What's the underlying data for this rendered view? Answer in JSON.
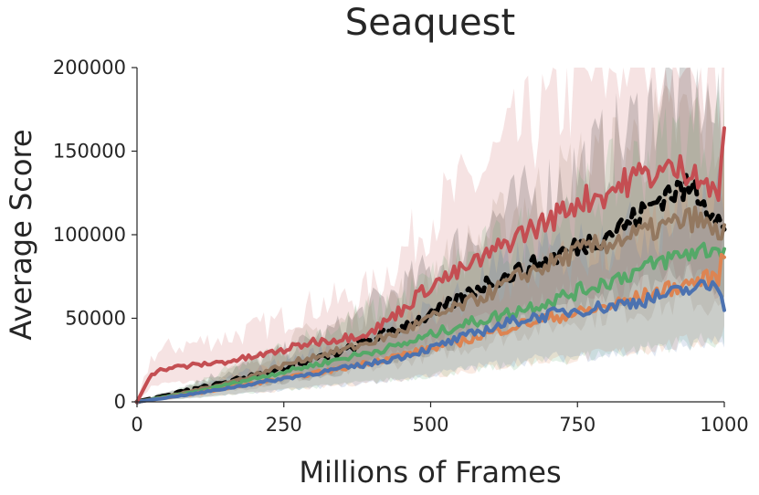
{
  "chart_data": {
    "type": "line",
    "title": "Seaquest",
    "xlabel": "Millions of Frames",
    "ylabel": "Average Score",
    "xlim": [
      0,
      1000
    ],
    "ylim": [
      0,
      200000
    ],
    "xticks": [
      "0",
      "250",
      "500",
      "750",
      "1000"
    ],
    "yticks": [
      "0",
      "50000",
      "100000",
      "150000",
      "200000"
    ],
    "grid": false,
    "legend": "none",
    "series": [
      {
        "color": "#c44e52",
        "dashed": false,
        "x": [
          0,
          25,
          50,
          100,
          150,
          200,
          250,
          300,
          350,
          400,
          450,
          500,
          550,
          600,
          650,
          700,
          750,
          800,
          850,
          900,
          950,
          990,
          1000
        ],
        "y": [
          0,
          17000,
          20000,
          22000,
          24000,
          27000,
          31000,
          36000,
          38000,
          42000,
          55000,
          70000,
          78000,
          88000,
          100000,
          108000,
          120000,
          125000,
          135000,
          138000,
          140000,
          120000,
          170000
        ],
        "band": [
          0.45,
          0.6
        ]
      },
      {
        "color": "#000000",
        "dashed": true,
        "x": [
          0,
          50,
          100,
          150,
          200,
          250,
          300,
          350,
          400,
          450,
          500,
          550,
          600,
          650,
          700,
          750,
          800,
          850,
          900,
          950,
          990,
          1000
        ],
        "y": [
          0,
          4000,
          8000,
          12000,
          16000,
          20000,
          25000,
          30000,
          38000,
          45000,
          52000,
          62000,
          72000,
          78000,
          85000,
          93000,
          100000,
          110000,
          125000,
          128000,
          110000,
          100000
        ],
        "band": [
          0.4,
          0.5
        ]
      },
      {
        "color": "#937860",
        "dashed": false,
        "x": [
          0,
          50,
          100,
          150,
          200,
          250,
          300,
          350,
          400,
          450,
          500,
          550,
          600,
          650,
          700,
          750,
          800,
          850,
          900,
          950,
          990,
          1000
        ],
        "y": [
          0,
          3000,
          7000,
          11000,
          16000,
          22000,
          27000,
          31000,
          36000,
          42000,
          50000,
          57000,
          65000,
          75000,
          82000,
          90000,
          95000,
          100000,
          105000,
          110000,
          100000,
          105000
        ],
        "band": [
          0.45,
          0.55
        ]
      },
      {
        "color": "#55a868",
        "dashed": false,
        "x": [
          0,
          50,
          100,
          150,
          200,
          250,
          300,
          350,
          400,
          450,
          500,
          550,
          600,
          650,
          700,
          750,
          800,
          850,
          900,
          950,
          990,
          1000
        ],
        "y": [
          0,
          3000,
          6000,
          10000,
          14000,
          18000,
          22000,
          26000,
          30000,
          34000,
          40000,
          46000,
          50000,
          55000,
          60000,
          66000,
          72000,
          78000,
          85000,
          90000,
          92000,
          91000
        ],
        "band": [
          0.6,
          0.8
        ]
      },
      {
        "color": "#dd8452",
        "dashed": false,
        "x": [
          0,
          50,
          100,
          150,
          200,
          250,
          300,
          350,
          400,
          450,
          500,
          550,
          600,
          650,
          700,
          750,
          800,
          850,
          900,
          950,
          990,
          1000
        ],
        "y": [
          0,
          2500,
          5000,
          8000,
          11000,
          14000,
          17000,
          20000,
          24000,
          28000,
          32000,
          36000,
          41000,
          46000,
          50000,
          53000,
          57000,
          62000,
          67000,
          72000,
          75000,
          90000
        ],
        "band": [
          0.5,
          0.6
        ]
      },
      {
        "color": "#4c72b0",
        "dashed": false,
        "x": [
          0,
          50,
          100,
          150,
          200,
          250,
          300,
          350,
          400,
          450,
          500,
          550,
          600,
          650,
          700,
          750,
          800,
          850,
          900,
          950,
          990,
          1000
        ],
        "y": [
          0,
          2500,
          5000,
          8000,
          11000,
          14000,
          17000,
          20000,
          23000,
          27000,
          32000,
          38000,
          44000,
          49000,
          52000,
          55000,
          57000,
          60000,
          64000,
          68000,
          70000,
          58000
        ],
        "band": [
          0.5,
          0.7
        ]
      }
    ]
  }
}
